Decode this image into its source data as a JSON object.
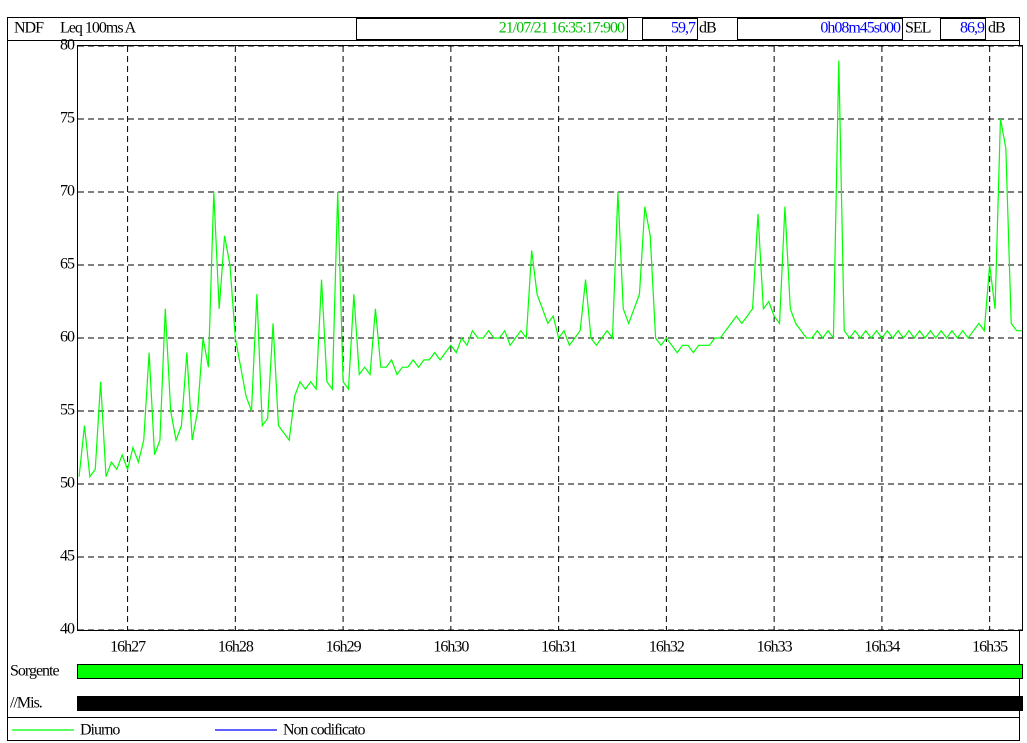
{
  "chart_data": {
    "type": "line",
    "header": {
      "instrument": "NDF",
      "parameter": "Leq 100ms A",
      "timestamp": "21/07/21 16:35:17:900",
      "level": "59,7",
      "level_unit": "dB",
      "duration": "0h08m45s000",
      "sel_label": "SEL",
      "sel": "86,9",
      "sel_unit": "dB"
    },
    "x": [
      986.55,
      986.6,
      986.65,
      986.7,
      986.75,
      986.8,
      986.85,
      986.9,
      986.95,
      987,
      987.05,
      987.1,
      987.15,
      987.2,
      987.25,
      987.3,
      987.35,
      987.4,
      987.45,
      987.5,
      987.55,
      987.6,
      987.65,
      987.7,
      987.75,
      987.8,
      987.85,
      987.9,
      987.95,
      988,
      988.05,
      988.1,
      988.15,
      988.2,
      988.25,
      988.3,
      988.35,
      988.4,
      988.45,
      988.5,
      988.55,
      988.6,
      988.65,
      988.7,
      988.75,
      988.8,
      988.85,
      988.9,
      988.95,
      989,
      989.05,
      989.1,
      989.15,
      989.2,
      989.25,
      989.3,
      989.35,
      989.4,
      989.45,
      989.5,
      989.55,
      989.6,
      989.65,
      989.7,
      989.75,
      989.8,
      989.85,
      989.9,
      989.95,
      990,
      990.05,
      990.1,
      990.15,
      990.2,
      990.25,
      990.3,
      990.35,
      990.4,
      990.45,
      990.5,
      990.55,
      990.6,
      990.65,
      990.7,
      990.75,
      990.8,
      990.85,
      990.9,
      990.95,
      991,
      991.05,
      991.1,
      991.15,
      991.2,
      991.25,
      991.3,
      991.35,
      991.4,
      991.45,
      991.5,
      991.55,
      991.6,
      991.65,
      991.7,
      991.75,
      991.8,
      991.85,
      991.9,
      991.95,
      992,
      992.05,
      992.1,
      992.15,
      992.2,
      992.25,
      992.3,
      992.35,
      992.4,
      992.45,
      992.5,
      992.55,
      992.6,
      992.65,
      992.7,
      992.75,
      992.8,
      992.85,
      992.9,
      992.95,
      993,
      993.05,
      993.1,
      993.15,
      993.2,
      993.25,
      993.3,
      993.35,
      993.4,
      993.45,
      993.5,
      993.55,
      993.6,
      993.65,
      993.7,
      993.75,
      993.8,
      993.85,
      993.9,
      993.95,
      994,
      994.05,
      994.1,
      994.15,
      994.2,
      994.25,
      994.3,
      994.35,
      994.4,
      994.45,
      994.5,
      994.55,
      994.6,
      994.65,
      994.7,
      994.75,
      994.8,
      994.85,
      994.9,
      994.95,
      995,
      995.05,
      995.1,
      995.15,
      995.2,
      995.25,
      995.3
    ],
    "series": [
      {
        "name": "Diurno",
        "color": "#00ff00",
        "values": [
          50.5,
          54,
          50.5,
          51,
          57,
          50.5,
          51.5,
          51,
          52,
          51,
          52.5,
          51.5,
          53,
          59,
          52,
          53,
          62,
          55,
          53,
          54,
          59,
          53,
          55,
          60,
          58,
          70,
          62,
          67,
          65,
          60,
          58,
          56,
          55,
          63,
          54,
          54.5,
          61,
          54,
          53.5,
          53,
          56,
          57,
          56.5,
          57,
          56.5,
          64,
          57,
          56.5,
          70,
          57,
          56.5,
          63,
          57.5,
          58,
          57.5,
          62,
          58,
          58,
          58.5,
          57.5,
          58,
          58,
          58.5,
          58,
          58.5,
          58.5,
          59,
          58.5,
          59,
          59.5,
          59,
          60,
          59.5,
          60.5,
          60,
          60,
          60.5,
          60,
          60,
          60.5,
          59.5,
          60,
          60.5,
          60,
          66,
          63,
          62,
          61,
          61.5,
          60,
          60.5,
          59.5,
          60,
          60.5,
          64,
          60,
          59.5,
          60,
          60.5,
          60,
          70,
          62,
          61,
          62,
          63,
          69,
          67,
          60,
          59.5,
          60,
          59.5,
          59,
          59.5,
          59.5,
          59,
          59.5,
          59.5,
          59.5,
          60,
          60,
          60.5,
          61,
          61.5,
          61,
          61.5,
          62,
          68.5,
          62,
          62.5,
          61.5,
          61,
          69,
          62,
          61,
          60.5,
          60,
          60,
          60.5,
          60,
          60.5,
          60,
          79,
          60.5,
          60,
          60.5,
          60,
          60.5,
          60,
          60.5,
          60,
          60.5,
          60,
          60.5,
          60,
          60.5,
          60,
          60.5,
          60,
          60.5,
          60,
          60.5,
          60,
          60.5,
          60,
          60.5,
          60,
          60.5,
          61,
          60.5,
          65,
          62,
          75,
          73,
          61,
          60.5,
          60.5
        ]
      }
    ],
    "legend_entries": [
      {
        "name": "Non codificato",
        "color": "#0000ff"
      }
    ],
    "tracks": [
      {
        "label": "Sorgente",
        "color": "#00ff00"
      },
      {
        "label": "//Mis.",
        "color": "#000000"
      }
    ],
    "xlim": [
      986.54,
      995.3
    ],
    "xticks": [
      {
        "value": 987,
        "label": "16h27"
      },
      {
        "value": 988,
        "label": "16h28"
      },
      {
        "value": 989,
        "label": "16h29"
      },
      {
        "value": 990,
        "label": "16h30"
      },
      {
        "value": 991,
        "label": "16h31"
      },
      {
        "value": 992,
        "label": "16h32"
      },
      {
        "value": 993,
        "label": "16h33"
      },
      {
        "value": 994,
        "label": "16h34"
      },
      {
        "value": 995,
        "label": "16h35"
      }
    ],
    "ylim": [
      40,
      80
    ],
    "yticks": [
      40,
      45,
      50,
      55,
      60,
      65,
      70,
      75,
      80
    ],
    "grid": true
  }
}
